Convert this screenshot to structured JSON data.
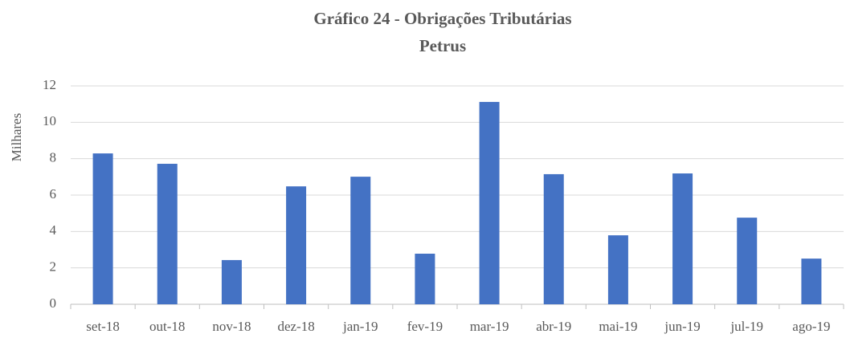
{
  "chart_data": {
    "type": "bar",
    "title": "Gráfico 24 - Obrigações Tributárias",
    "subtitle": "Petrus",
    "y_label": "Milhares",
    "categories": [
      "set-18",
      "out-18",
      "nov-18",
      "dez-18",
      "jan-19",
      "fev-19",
      "mar-19",
      "abr-19",
      "mai-19",
      "jun-19",
      "jul-19",
      "ago-19"
    ],
    "values": [
      8.29,
      7.72,
      2.43,
      6.48,
      7.01,
      2.78,
      11.12,
      7.15,
      3.79,
      7.19,
      4.76,
      2.51
    ],
    "color": "#4472c4",
    "ylim": [
      0,
      12
    ],
    "yticks": [
      0,
      2,
      4,
      6,
      8,
      10,
      12
    ],
    "grid": true
  }
}
